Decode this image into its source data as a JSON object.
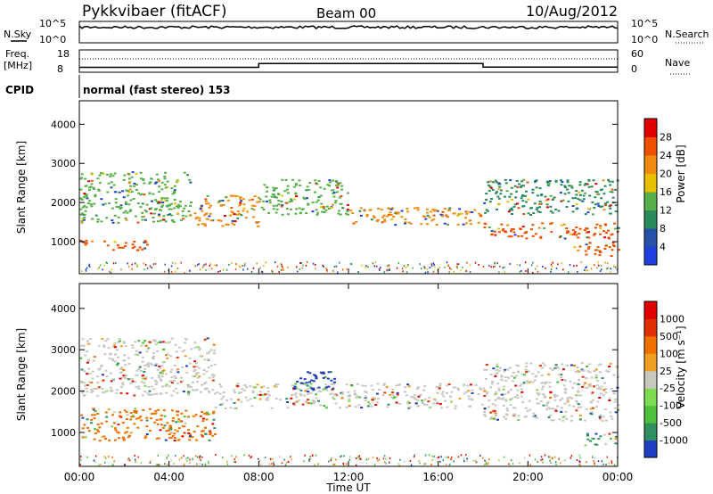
{
  "header": {
    "station": "Pykkvibaer (fitACF)",
    "beam": "Beam 00",
    "date": "10/Aug/2012"
  },
  "noise_panel": {
    "left_label": "N.Sky",
    "right_label": "N.Search",
    "left_ticks": [
      "10^5",
      "10^0"
    ],
    "right_ticks": [
      "10^5",
      "10^0"
    ]
  },
  "freq_panel": {
    "left_label_1": "Freq.",
    "left_label_2": "[MHz]",
    "left_ticks": [
      "18",
      "8"
    ],
    "right_label": "Nave",
    "right_ticks": [
      "60",
      "0"
    ],
    "freq_mhz": [
      [
        0,
        10.2
      ],
      [
        8.0,
        10.2
      ],
      [
        8.0,
        11.9
      ],
      [
        18.0,
        11.9
      ],
      [
        18.0,
        10.3
      ],
      [
        24,
        10.3
      ]
    ],
    "nave": [
      [
        0,
        36
      ],
      [
        24,
        36
      ]
    ]
  },
  "cpid": {
    "label": "CPID",
    "mode": "normal (fast stereo) 153"
  },
  "chart_data": [
    {
      "type": "heatmap",
      "parameter": "Power",
      "ylabel": "Slant Range [km]",
      "ylim": [
        180,
        4600
      ],
      "yticks": [
        "1000",
        "2000",
        "3000",
        "4000"
      ],
      "xlim": [
        0,
        24
      ],
      "colorbar": {
        "label": "Power [dB]",
        "levels": [
          "4",
          "8",
          "12",
          "16",
          "20",
          "24",
          "28"
        ],
        "colors": [
          "#1f3fe0",
          "#2552a8",
          "#2b8a5a",
          "#58b04a",
          "#e8c000",
          "#f08a10",
          "#ee5000",
          "#e00000"
        ]
      },
      "bands": [
        {
          "start": 0.0,
          "end": 3.0,
          "range_km": [
            800,
            1050
          ],
          "dominant": "#ee5000"
        },
        {
          "start": 0.0,
          "end": 5.0,
          "range_km": [
            1500,
            2800
          ],
          "dominant": "#58b04a"
        },
        {
          "start": 5.0,
          "end": 8.0,
          "range_km": [
            1400,
            2200
          ],
          "dominant": "#f08a10"
        },
        {
          "start": 8.0,
          "end": 12.0,
          "range_km": [
            1700,
            2600
          ],
          "dominant": "#58b04a"
        },
        {
          "start": 12.0,
          "end": 18.0,
          "range_km": [
            1450,
            1900
          ],
          "dominant": "#f08a10"
        },
        {
          "start": 18.0,
          "end": 24.0,
          "range_km": [
            1100,
            1500
          ],
          "dominant": "#ee5000"
        },
        {
          "start": 18.0,
          "end": 24.0,
          "range_km": [
            1700,
            2600
          ],
          "dominant": "#2b8a5a"
        },
        {
          "start": 22.0,
          "end": 24.0,
          "range_km": [
            650,
            1000
          ],
          "dominant": "#ee5000"
        }
      ]
    },
    {
      "type": "heatmap",
      "parameter": "Velocity",
      "ylabel": "Slant Range [km]",
      "ylim": [
        180,
        4600
      ],
      "yticks": [
        "1000",
        "2000",
        "3000",
        "4000"
      ],
      "xlim": [
        0,
        24
      ],
      "xticks": [
        "00:00",
        "04:00",
        "08:00",
        "12:00",
        "16:00",
        "20:00",
        "00:00"
      ],
      "xlabel": "Time UT",
      "colorbar": {
        "label": "Velocity [m s⁻¹]",
        "levels": [
          "1000",
          "500",
          "100",
          "25",
          "-25",
          "-100",
          "-500",
          "-1000"
        ],
        "colors": [
          "#1f3fc0",
          "#2f8f5f",
          "#4cc23c",
          "#7edc50",
          "#c8c8c0",
          "#f0a020",
          "#f07000",
          "#e03000",
          "#e00000"
        ]
      },
      "bands": [
        {
          "start": 0.0,
          "end": 6.0,
          "range_km": [
            1900,
            3300
          ],
          "dominant": "#c8c8c0"
        },
        {
          "start": 0.0,
          "end": 6.0,
          "range_km": [
            800,
            1600
          ],
          "dominant": "#f07000"
        },
        {
          "start": 6.0,
          "end": 18.0,
          "range_km": [
            1600,
            2200
          ],
          "dominant": "#c8c8c0"
        },
        {
          "start": 9.5,
          "end": 11.5,
          "range_km": [
            2000,
            2500
          ],
          "dominant": "#1f3fc0"
        },
        {
          "start": 18.0,
          "end": 24.0,
          "range_km": [
            1300,
            2700
          ],
          "dominant": "#c8c8c0"
        },
        {
          "start": 22.5,
          "end": 24.0,
          "range_km": [
            700,
            1000
          ],
          "dominant": "#2f8f5f"
        }
      ]
    }
  ]
}
